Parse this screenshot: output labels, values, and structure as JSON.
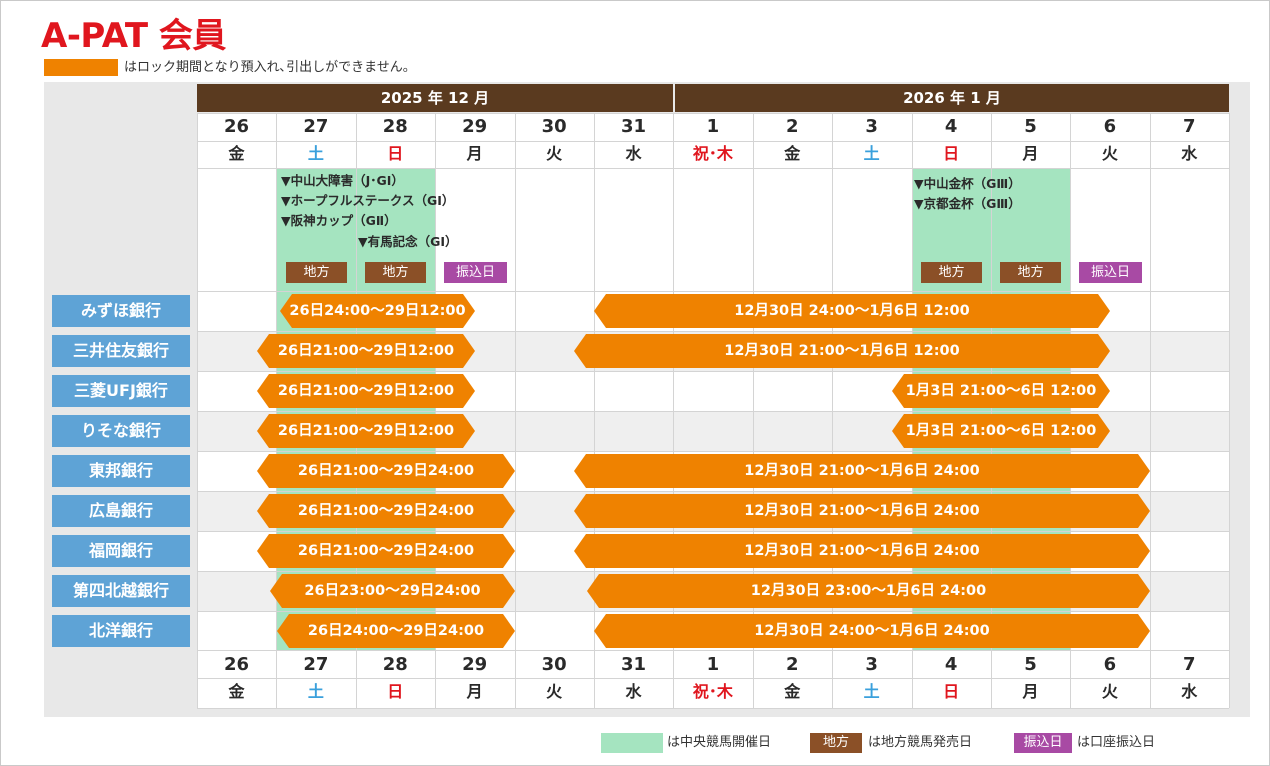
{
  "title": "A-PAT 会員",
  "top_legend": {
    "text": "はロック期間となり預入れ､引出しができません。",
    "color": "#ef8200"
  },
  "months": [
    {
      "label": "2025 年 12 月"
    },
    {
      "label": "2026 年 1 月"
    }
  ],
  "days": [
    {
      "num": "26",
      "wd": "金",
      "type": "normal"
    },
    {
      "num": "27",
      "wd": "土",
      "type": "sat"
    },
    {
      "num": "28",
      "wd": "日",
      "type": "red"
    },
    {
      "num": "29",
      "wd": "月",
      "type": "normal"
    },
    {
      "num": "30",
      "wd": "火",
      "type": "normal"
    },
    {
      "num": "31",
      "wd": "水",
      "type": "normal"
    },
    {
      "num": "1",
      "wd": "祝･木",
      "type": "red"
    },
    {
      "num": "2",
      "wd": "金",
      "type": "normal"
    },
    {
      "num": "3",
      "wd": "土",
      "type": "sat"
    },
    {
      "num": "4",
      "wd": "日",
      "type": "red"
    },
    {
      "num": "5",
      "wd": "月",
      "type": "normal"
    },
    {
      "num": "6",
      "wd": "火",
      "type": "normal"
    },
    {
      "num": "7",
      "wd": "水",
      "type": "normal"
    }
  ],
  "races": {
    "dec": [
      "▼中山大障害（J･GI）",
      "▼ホープフルステークス（GI）",
      "▼阪神カップ（GⅡ）",
      "▼有馬記念（GI）"
    ],
    "jan": [
      "▼中山金杯（GⅢ）",
      "▼京都金杯（GⅢ）"
    ]
  },
  "tags": {
    "local": "地方",
    "transfer": "振込日"
  },
  "banks": [
    {
      "name": "みずほ銀行",
      "p1": "26日24:00～29日12:00",
      "p2": "12月30日 24:00～1月6日 12:00"
    },
    {
      "name": "三井住友銀行",
      "p1": "26日21:00～29日12:00",
      "p2": "12月30日 21:00～1月6日 12:00"
    },
    {
      "name": "三菱UFJ銀行",
      "p1": "26日21:00～29日12:00",
      "p2": "1月3日 21:00～6日 12:00"
    },
    {
      "name": "りそな銀行",
      "p1": "26日21:00～29日12:00",
      "p2": "1月3日 21:00～6日 12:00"
    },
    {
      "name": "東邦銀行",
      "p1": "26日21:00～29日24:00",
      "p2": "12月30日 21:00～1月6日 24:00"
    },
    {
      "name": "広島銀行",
      "p1": "26日21:00～29日24:00",
      "p2": "12月30日 21:00～1月6日 24:00"
    },
    {
      "name": "福岡銀行",
      "p1": "26日21:00～29日24:00",
      "p2": "12月30日 21:00～1月6日 24:00"
    },
    {
      "name": "第四北越銀行",
      "p1": "26日23:00～29日24:00",
      "p2": "12月30日 23:00～1月6日 24:00"
    },
    {
      "name": "北洋銀行",
      "p1": "26日24:00～29日24:00",
      "p2": "12月30日 24:00～1月6日 24:00"
    }
  ],
  "bottom_legend": {
    "central_text": "は中央競馬開催日",
    "local_label": "地方",
    "local_text": "は地方競馬発売日",
    "transfer_label": "振込日",
    "transfer_text": "は口座振込日",
    "central_color": "#a5e4c0",
    "local_color": "#8b5027",
    "transfer_color": "#a84aa4"
  }
}
